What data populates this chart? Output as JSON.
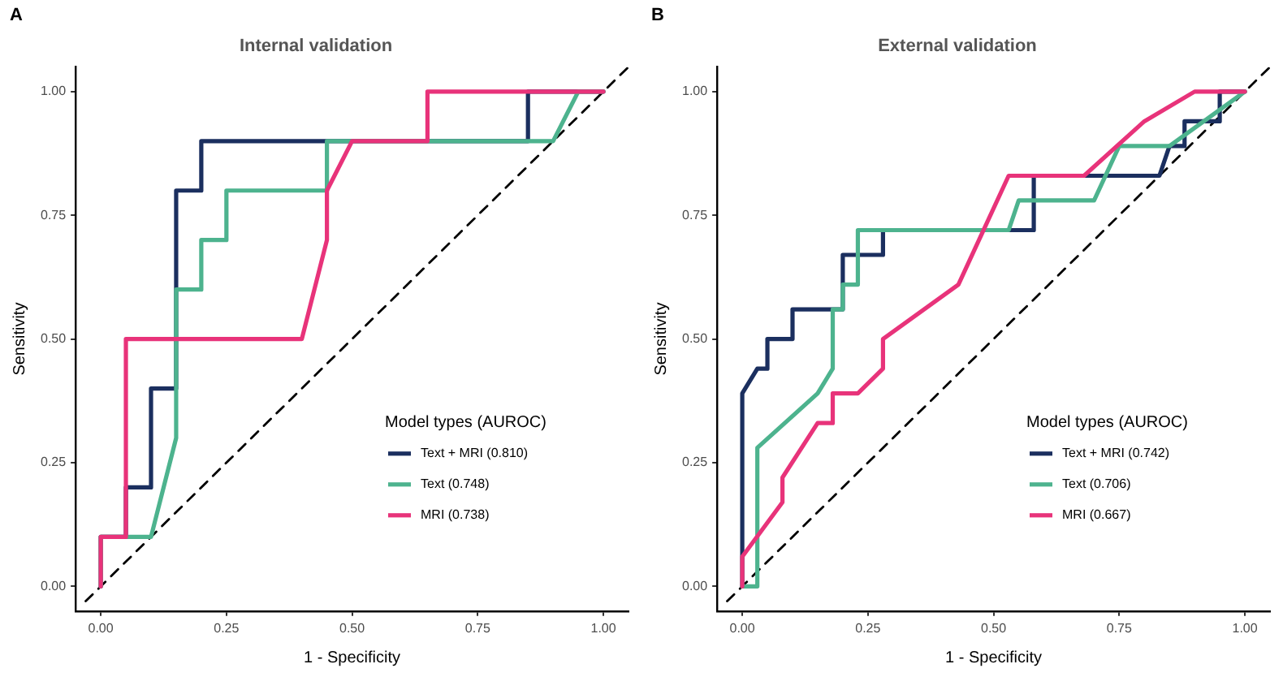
{
  "chart_data": [
    {
      "type": "line",
      "title": "Internal validation",
      "xlabel": "1 - Specificity",
      "ylabel": "Sensitivity",
      "legend_title": "Model types (AUROC)",
      "legend": "bottom right",
      "marker": "none",
      "annotations": [
        "A"
      ],
      "xlim": [
        -0.05,
        1.05
      ],
      "ylim": [
        -0.05,
        1.05
      ],
      "xticks": [
        {
          "value": 0,
          "label": "0.00"
        },
        {
          "value": 0.25,
          "label": "0.25"
        },
        {
          "value": 0.5,
          "label": "0.50"
        },
        {
          "value": 0.75,
          "label": "0.75"
        },
        {
          "value": 1,
          "label": "1.00"
        }
      ],
      "yticks": [
        {
          "value": 0,
          "label": "0.00"
        },
        {
          "value": 0.25,
          "label": "0.25"
        },
        {
          "value": 0.5,
          "label": "0.50"
        },
        {
          "value": 0.75,
          "label": "0.75"
        },
        {
          "value": 1,
          "label": "1.00"
        }
      ],
      "series": [
        {
          "type": "line",
          "color": "#000000",
          "line_style": "dashed",
          "x": [
            -0.03,
            1.05
          ],
          "values": [
            -0.03,
            1.05
          ]
        },
        {
          "name": "Text + MRI (0.810)",
          "color": "#1b2f5f",
          "x": [
            0,
            0,
            0.05,
            0.05,
            0.1,
            0.1,
            0.15,
            0.15,
            0.2,
            0.2,
            0.85,
            0.85,
            1
          ],
          "values": [
            0,
            0.1,
            0.1,
            0.2,
            0.2,
            0.4,
            0.4,
            0.8,
            0.8,
            0.9,
            0.9,
            1,
            1
          ]
        },
        {
          "name": "Text (0.748)",
          "color": "#4db38e",
          "x": [
            0,
            0,
            0.1,
            0.15,
            0.15,
            0.2,
            0.2,
            0.25,
            0.25,
            0.45,
            0.45,
            0.9,
            0.95,
            1
          ],
          "values": [
            0,
            0.1,
            0.1,
            0.3,
            0.6,
            0.6,
            0.7,
            0.7,
            0.8,
            0.8,
            0.9,
            0.9,
            1,
            1
          ]
        },
        {
          "name": "MRI (0.738)",
          "color": "#e8337a",
          "x": [
            0,
            0,
            0.05,
            0.05,
            0.4,
            0.45,
            0.45,
            0.5,
            0.65,
            0.65,
            1
          ],
          "values": [
            0,
            0.1,
            0.1,
            0.5,
            0.5,
            0.7,
            0.8,
            0.9,
            0.9,
            1,
            1
          ]
        }
      ]
    },
    {
      "type": "line",
      "title": "External validation",
      "xlabel": "1 - Specificity",
      "ylabel": "Sensitivity",
      "legend_title": "Model types (AUROC)",
      "legend": "bottom right",
      "marker": "none",
      "annotations": [
        "B"
      ],
      "xlim": [
        -0.05,
        1.05
      ],
      "ylim": [
        -0.05,
        1.05
      ],
      "xticks": [
        {
          "value": 0,
          "label": "0.00"
        },
        {
          "value": 0.25,
          "label": "0.25"
        },
        {
          "value": 0.5,
          "label": "0.50"
        },
        {
          "value": 0.75,
          "label": "0.75"
        },
        {
          "value": 1,
          "label": "1.00"
        }
      ],
      "yticks": [
        {
          "value": 0,
          "label": "0.00"
        },
        {
          "value": 0.25,
          "label": "0.25"
        },
        {
          "value": 0.5,
          "label": "0.50"
        },
        {
          "value": 0.75,
          "label": "0.75"
        },
        {
          "value": 1,
          "label": "1.00"
        }
      ],
      "series": [
        {
          "type": "line",
          "color": "#000000",
          "line_style": "dashed",
          "x": [
            -0.03,
            1.05
          ],
          "values": [
            -0.03,
            1.05
          ]
        },
        {
          "name": "Text + MRI (0.742)",
          "color": "#1b2f5f",
          "x": [
            0,
            0,
            0.03,
            0.05,
            0.05,
            0.1,
            0.1,
            0.2,
            0.2,
            0.28,
            0.28,
            0.58,
            0.58,
            0.83,
            0.85,
            0.88,
            0.88,
            0.95,
            0.95,
            1
          ],
          "values": [
            0,
            0.39,
            0.44,
            0.44,
            0.5,
            0.5,
            0.56,
            0.56,
            0.67,
            0.67,
            0.72,
            0.72,
            0.83,
            0.83,
            0.89,
            0.89,
            0.94,
            0.94,
            1,
            1
          ]
        },
        {
          "name": "Text (0.706)",
          "color": "#4db38e",
          "x": [
            0,
            0.03,
            0.03,
            0.15,
            0.18,
            0.18,
            0.2,
            0.2,
            0.23,
            0.23,
            0.53,
            0.55,
            0.7,
            0.75,
            0.85,
            1
          ],
          "values": [
            0,
            0,
            0.28,
            0.39,
            0.44,
            0.56,
            0.56,
            0.61,
            0.61,
            0.72,
            0.72,
            0.78,
            0.78,
            0.89,
            0.89,
            1
          ]
        },
        {
          "name": "MRI (0.667)",
          "color": "#e8337a",
          "x": [
            0,
            0,
            0.08,
            0.08,
            0.15,
            0.18,
            0.18,
            0.23,
            0.28,
            0.28,
            0.43,
            0.53,
            0.68,
            0.8,
            0.9,
            1
          ],
          "values": [
            0,
            0.06,
            0.17,
            0.22,
            0.33,
            0.33,
            0.39,
            0.39,
            0.44,
            0.5,
            0.61,
            0.83,
            0.83,
            0.94,
            1,
            1
          ]
        }
      ]
    }
  ]
}
